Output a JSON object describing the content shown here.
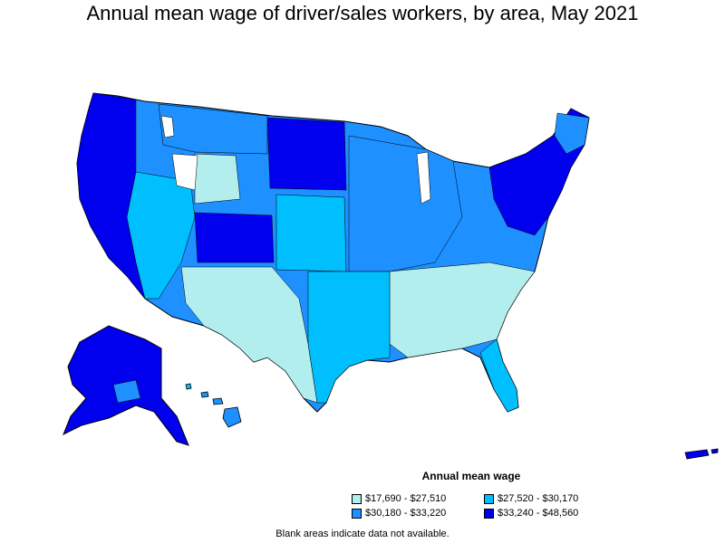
{
  "title": "Annual mean wage of driver/sales workers, by area, May 2021",
  "legend": {
    "title": "Annual mean wage",
    "items": [
      {
        "label": "$17,690 - $27,510",
        "color": "#b3eeee"
      },
      {
        "label": "$27,520 - $30,170",
        "color": "#00bfff"
      },
      {
        "label": "$30,180 - $33,220",
        "color": "#1e90ff"
      },
      {
        "label": "$33,240 - $48,560",
        "color": "#0000ee"
      }
    ]
  },
  "footnote": "Blank areas indicate data not available."
}
